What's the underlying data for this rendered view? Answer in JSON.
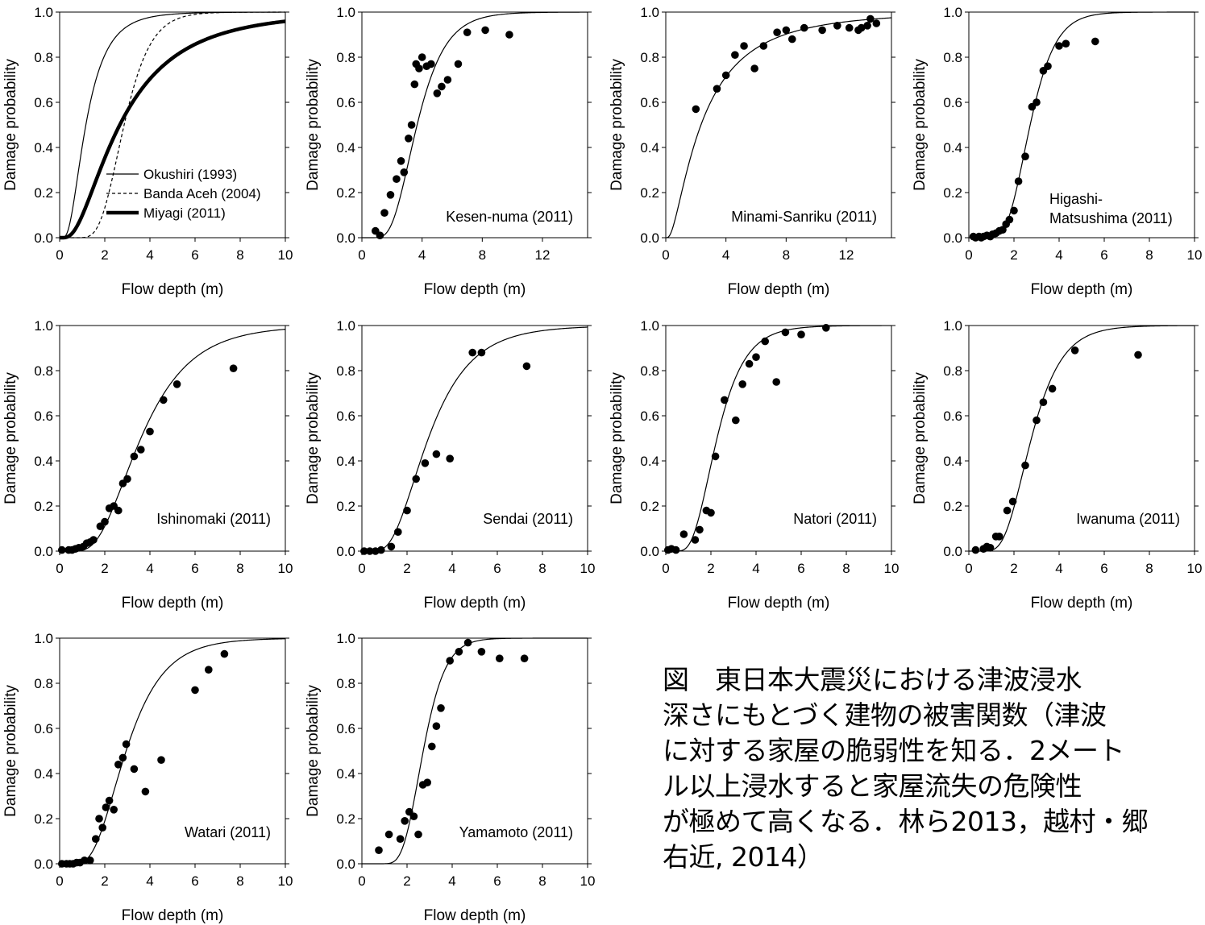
{
  "caption": "図　東日本大震災における津波浸水\n深さにもとづく建物の被害関数（津波\nに対する家屋の脆弱性を知る．2メート\nル以上浸水すると家屋流失の危険性\nが極めて高くなる．林ら2013，越村・郷\n右近, 2014）",
  "chart_data": [
    {
      "type": "line",
      "xlabel": "Flow depth (m)",
      "ylabel": "Damage probability",
      "xlim": [
        0,
        10
      ],
      "ylim": [
        0,
        1
      ],
      "xticks": [
        "0",
        "2",
        "4",
        "6",
        "8",
        "10"
      ],
      "yticks": [
        "0.0",
        "0.2",
        "0.4",
        "0.6",
        "0.8",
        "1.0"
      ],
      "legend_position": "bottom-right",
      "series": [
        {
          "name": "Okushiri (1993)",
          "style": "thin",
          "curve": {
            "mu": 0.15,
            "sigma": 0.62
          }
        },
        {
          "name": "Banda Aceh (2004)",
          "style": "dashed",
          "curve": {
            "mu": 1.05,
            "sigma": 0.32
          }
        },
        {
          "name": "Miyagi (2011)",
          "style": "thick",
          "curve": {
            "mu": 0.98,
            "sigma": 0.76
          }
        }
      ]
    },
    {
      "type": "scatter",
      "label": "Kesen-numa (2011)",
      "xlabel": "Flow depth (m)",
      "ylabel": "Damage probability",
      "xlim": [
        0,
        15
      ],
      "ylim": [
        0,
        1
      ],
      "xticks": [
        "0",
        "4",
        "8",
        "12"
      ],
      "yticks": [
        "0.0",
        "0.2",
        "0.4",
        "0.6",
        "0.8",
        "1.0"
      ],
      "curve": {
        "mu": 1.3,
        "sigma": 0.4
      },
      "points": [
        [
          0.9,
          0.03
        ],
        [
          1.2,
          0.01
        ],
        [
          1.5,
          0.11
        ],
        [
          1.9,
          0.19
        ],
        [
          2.3,
          0.26
        ],
        [
          2.6,
          0.34
        ],
        [
          2.8,
          0.29
        ],
        [
          3.1,
          0.44
        ],
        [
          3.3,
          0.5
        ],
        [
          3.5,
          0.68
        ],
        [
          3.6,
          0.77
        ],
        [
          3.8,
          0.75
        ],
        [
          4.0,
          0.8
        ],
        [
          4.3,
          0.76
        ],
        [
          4.6,
          0.77
        ],
        [
          5.0,
          0.64
        ],
        [
          5.3,
          0.67
        ],
        [
          5.7,
          0.7
        ],
        [
          6.4,
          0.77
        ],
        [
          7.0,
          0.91
        ],
        [
          8.2,
          0.92
        ],
        [
          9.8,
          0.9
        ]
      ]
    },
    {
      "type": "scatter",
      "label": "Minami-Sanriku (2011)",
      "xlabel": "Flow depth (m)",
      "ylabel": "Damage probability",
      "xlim": [
        0,
        15
      ],
      "ylim": [
        0,
        1
      ],
      "xticks": [
        "0",
        "4",
        "8",
        "12"
      ],
      "yticks": [
        "0.0",
        "0.2",
        "0.4",
        "0.6",
        "0.8",
        "1.0"
      ],
      "curve": {
        "mu": 0.85,
        "sigma": 0.95
      },
      "points": [
        [
          2.0,
          0.57
        ],
        [
          3.4,
          0.66
        ],
        [
          4.0,
          0.72
        ],
        [
          4.6,
          0.81
        ],
        [
          5.2,
          0.85
        ],
        [
          5.9,
          0.75
        ],
        [
          6.5,
          0.85
        ],
        [
          7.4,
          0.91
        ],
        [
          8.0,
          0.92
        ],
        [
          8.4,
          0.88
        ],
        [
          9.2,
          0.93
        ],
        [
          10.4,
          0.92
        ],
        [
          11.4,
          0.94
        ],
        [
          12.2,
          0.93
        ],
        [
          12.8,
          0.92
        ],
        [
          13.0,
          0.93
        ],
        [
          13.4,
          0.94
        ],
        [
          13.6,
          0.97
        ],
        [
          14.0,
          0.95
        ]
      ]
    },
    {
      "type": "scatter",
      "label": "Higashi-\nMatsushima (2011)",
      "xlabel": "Flow depth (m)",
      "ylabel": "Damage probability",
      "xlim": [
        0,
        10
      ],
      "ylim": [
        0,
        1
      ],
      "xticks": [
        "0",
        "2",
        "4",
        "6",
        "8",
        "10"
      ],
      "yticks": [
        "0.0",
        "0.2",
        "0.4",
        "0.6",
        "0.8",
        "1.0"
      ],
      "curve": {
        "mu": 1.0,
        "sigma": 0.32
      },
      "points": [
        [
          0.2,
          0.005
        ],
        [
          0.3,
          0.0
        ],
        [
          0.45,
          0.005
        ],
        [
          0.55,
          0.0
        ],
        [
          0.65,
          0.005
        ],
        [
          0.8,
          0.01
        ],
        [
          0.95,
          0.005
        ],
        [
          1.05,
          0.015
        ],
        [
          1.2,
          0.02
        ],
        [
          1.35,
          0.03
        ],
        [
          1.5,
          0.035
        ],
        [
          1.65,
          0.06
        ],
        [
          1.8,
          0.08
        ],
        [
          2.0,
          0.12
        ],
        [
          2.2,
          0.25
        ],
        [
          2.5,
          0.36
        ],
        [
          2.8,
          0.58
        ],
        [
          3.0,
          0.6
        ],
        [
          3.3,
          0.74
        ],
        [
          3.5,
          0.76
        ],
        [
          4.0,
          0.85
        ],
        [
          4.3,
          0.86
        ],
        [
          5.6,
          0.87
        ]
      ]
    },
    {
      "type": "scatter",
      "label": "Ishinomaki (2011)",
      "xlabel": "Flow depth (m)",
      "ylabel": "Damage probability",
      "xlim": [
        0,
        10
      ],
      "ylim": [
        0,
        1
      ],
      "xticks": [
        "0",
        "2",
        "4",
        "6",
        "8",
        "10"
      ],
      "yticks": [
        "0.0",
        "0.2",
        "0.4",
        "0.6",
        "0.8",
        "1.0"
      ],
      "curve": {
        "mu": 1.28,
        "sigma": 0.48
      },
      "points": [
        [
          0.1,
          0.005
        ],
        [
          0.4,
          0.005
        ],
        [
          0.55,
          0.005
        ],
        [
          0.7,
          0.01
        ],
        [
          0.85,
          0.015
        ],
        [
          1.05,
          0.02
        ],
        [
          1.2,
          0.035
        ],
        [
          1.35,
          0.04
        ],
        [
          1.5,
          0.05
        ],
        [
          1.8,
          0.11
        ],
        [
          2.0,
          0.13
        ],
        [
          2.2,
          0.19
        ],
        [
          2.4,
          0.2
        ],
        [
          2.6,
          0.18
        ],
        [
          2.8,
          0.3
        ],
        [
          3.0,
          0.32
        ],
        [
          3.3,
          0.42
        ],
        [
          3.6,
          0.45
        ],
        [
          4.0,
          0.53
        ],
        [
          4.6,
          0.67
        ],
        [
          5.2,
          0.74
        ],
        [
          7.7,
          0.81
        ]
      ]
    },
    {
      "type": "scatter",
      "label": "Sendai (2011)",
      "xlabel": "Flow depth (m)",
      "ylabel": "Damage probability",
      "xlim": [
        0,
        10
      ],
      "ylim": [
        0,
        1
      ],
      "xticks": [
        "0",
        "2",
        "4",
        "6",
        "8",
        "10"
      ],
      "yticks": [
        "0.0",
        "0.2",
        "0.4",
        "0.6",
        "0.8",
        "1.0"
      ],
      "curve": {
        "mu": 1.08,
        "sigma": 0.5
      },
      "points": [
        [
          0.1,
          0.0
        ],
        [
          0.35,
          0.0
        ],
        [
          0.6,
          0.0
        ],
        [
          0.85,
          0.005
        ],
        [
          1.3,
          0.02
        ],
        [
          1.6,
          0.085
        ],
        [
          2.0,
          0.18
        ],
        [
          2.4,
          0.32
        ],
        [
          2.8,
          0.39
        ],
        [
          3.3,
          0.43
        ],
        [
          3.9,
          0.41
        ],
        [
          4.9,
          0.88
        ],
        [
          5.3,
          0.88
        ],
        [
          7.3,
          0.82
        ]
      ]
    },
    {
      "type": "scatter",
      "label": "Natori (2011)",
      "xlabel": "Flow depth (m)",
      "ylabel": "Damage probability",
      "xlim": [
        0,
        10
      ],
      "ylim": [
        0,
        1
      ],
      "xticks": [
        "0",
        "2",
        "4",
        "6",
        "8",
        "10"
      ],
      "yticks": [
        "0.0",
        "0.2",
        "0.4",
        "0.6",
        "0.8",
        "1.0"
      ],
      "curve": {
        "mu": 0.82,
        "sigma": 0.42
      },
      "points": [
        [
          0.1,
          0.005
        ],
        [
          0.25,
          0.01
        ],
        [
          0.45,
          0.005
        ],
        [
          0.8,
          0.075
        ],
        [
          1.3,
          0.05
        ],
        [
          1.5,
          0.095
        ],
        [
          1.8,
          0.18
        ],
        [
          2.0,
          0.17
        ],
        [
          2.2,
          0.42
        ],
        [
          2.6,
          0.67
        ],
        [
          3.1,
          0.58
        ],
        [
          3.4,
          0.74
        ],
        [
          3.7,
          0.83
        ],
        [
          4.0,
          0.86
        ],
        [
          4.4,
          0.93
        ],
        [
          4.9,
          0.75
        ],
        [
          5.3,
          0.97
        ],
        [
          6.0,
          0.96
        ],
        [
          7.1,
          0.99
        ]
      ]
    },
    {
      "type": "scatter",
      "label": "Iwanuma (2011)",
      "xlabel": "Flow depth (m)",
      "ylabel": "Damage probability",
      "xlim": [
        0,
        10
      ],
      "ylim": [
        0,
        1
      ],
      "xticks": [
        "0",
        "2",
        "4",
        "6",
        "8",
        "10"
      ],
      "yticks": [
        "0.0",
        "0.2",
        "0.4",
        "0.6",
        "0.8",
        "1.0"
      ],
      "curve": {
        "mu": 1.02,
        "sigma": 0.38
      },
      "points": [
        [
          0.3,
          0.005
        ],
        [
          0.65,
          0.01
        ],
        [
          0.8,
          0.02
        ],
        [
          0.95,
          0.015
        ],
        [
          1.2,
          0.065
        ],
        [
          1.35,
          0.065
        ],
        [
          1.7,
          0.18
        ],
        [
          1.95,
          0.22
        ],
        [
          2.5,
          0.38
        ],
        [
          3.0,
          0.58
        ],
        [
          3.3,
          0.66
        ],
        [
          3.7,
          0.72
        ],
        [
          4.7,
          0.89
        ],
        [
          7.5,
          0.87
        ]
      ]
    },
    {
      "type": "scatter",
      "label": "Watari (2011)",
      "xlabel": "Flow depth (m)",
      "ylabel": "Damage probability",
      "xlim": [
        0,
        10
      ],
      "ylim": [
        0,
        1
      ],
      "xticks": [
        "0",
        "2",
        "4",
        "6",
        "8",
        "10"
      ],
      "yticks": [
        "0.0",
        "0.2",
        "0.4",
        "0.6",
        "0.8",
        "1.0"
      ],
      "curve": {
        "mu": 1.08,
        "sigma": 0.44
      },
      "points": [
        [
          0.1,
          0.0
        ],
        [
          0.3,
          0.0
        ],
        [
          0.45,
          0.0
        ],
        [
          0.6,
          0.0
        ],
        [
          0.75,
          0.005
        ],
        [
          0.9,
          0.005
        ],
        [
          1.1,
          0.015
        ],
        [
          1.35,
          0.015
        ],
        [
          1.6,
          0.11
        ],
        [
          1.75,
          0.2
        ],
        [
          1.9,
          0.16
        ],
        [
          2.05,
          0.25
        ],
        [
          2.2,
          0.28
        ],
        [
          2.4,
          0.24
        ],
        [
          2.6,
          0.44
        ],
        [
          2.8,
          0.47
        ],
        [
          2.95,
          0.53
        ],
        [
          3.3,
          0.42
        ],
        [
          3.8,
          0.32
        ],
        [
          4.5,
          0.46
        ],
        [
          6.0,
          0.77
        ],
        [
          6.6,
          0.86
        ],
        [
          7.3,
          0.93
        ]
      ]
    },
    {
      "type": "scatter",
      "label": "Yamamoto (2011)",
      "xlabel": "Flow depth (m)",
      "ylabel": "Damage probability",
      "xlim": [
        0,
        10
      ],
      "ylim": [
        0,
        1
      ],
      "xticks": [
        "0",
        "2",
        "4",
        "6",
        "8",
        "10"
      ],
      "yticks": [
        "0.0",
        "0.2",
        "0.4",
        "0.6",
        "0.8",
        "1.0"
      ],
      "curve": {
        "mu": 1.0,
        "sigma": 0.28
      },
      "points": [
        [
          0.75,
          0.06
        ],
        [
          1.2,
          0.13
        ],
        [
          1.7,
          0.11
        ],
        [
          1.9,
          0.19
        ],
        [
          2.1,
          0.23
        ],
        [
          2.3,
          0.21
        ],
        [
          2.5,
          0.13
        ],
        [
          2.7,
          0.35
        ],
        [
          2.9,
          0.36
        ],
        [
          3.1,
          0.52
        ],
        [
          3.3,
          0.61
        ],
        [
          3.5,
          0.69
        ],
        [
          3.9,
          0.9
        ],
        [
          4.3,
          0.94
        ],
        [
          4.7,
          0.98
        ],
        [
          5.3,
          0.94
        ],
        [
          6.1,
          0.91
        ],
        [
          7.2,
          0.91
        ]
      ]
    }
  ]
}
